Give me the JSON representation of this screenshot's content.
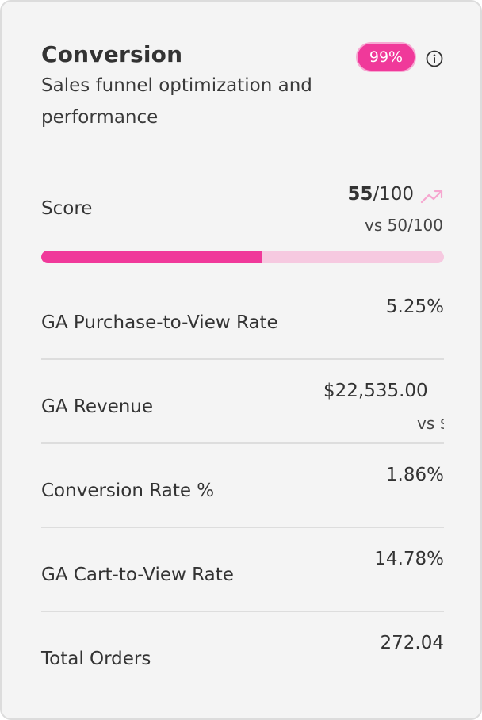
{
  "card": {
    "title": "Conversion",
    "subtitle": "Sales funnel optimization and performance",
    "badge": "99%",
    "accent_color": "#f0399a",
    "info_icon": "info-icon"
  },
  "score": {
    "label": "Score",
    "value": "55",
    "max": "/100",
    "compare": "vs 50/100",
    "trend_icon": "trending-up-icon",
    "progress_fraction": 0.55
  },
  "metrics": [
    {
      "label": "GA Purchase-to-View Rate",
      "value": "5.25%"
    },
    {
      "label": "GA Revenue",
      "value": "$22,535.00",
      "sub": "vs $"
    },
    {
      "label": "Conversion Rate %",
      "value": "1.86%"
    },
    {
      "label": "GA Cart-to-View Rate",
      "value": "14.78%"
    },
    {
      "label": "Total Orders",
      "value": "272.04"
    }
  ]
}
